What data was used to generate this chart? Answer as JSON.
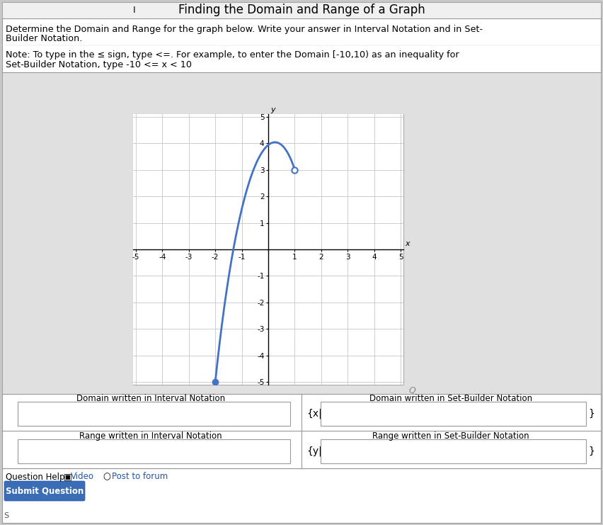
{
  "title": "Finding the Domain and Range of a Graph",
  "instruction_line1": "Determine the Domain and Range for the graph below. Write your answer in Interval Notation and in Set-",
  "instruction_line2": "Builder Notation.",
  "note_line1": "Note: To type in the ≤ sign, type <=. For example, to enter the Domain [-10,10) as an inequality for",
  "note_line2": "Set-Builder Notation, type -10 <= x < 10",
  "bg_outer": "#c8c8c8",
  "bg_page": "#ffffff",
  "bg_graph_area": "#e0e0e0",
  "bg_graph": "#ffffff",
  "grid_color": "#bbbbbb",
  "curve_color": "#4472C4",
  "curve_linewidth": 2.0,
  "filled_dot": [
    -2,
    -5
  ],
  "open_dot": [
    1,
    3
  ],
  "xmin": -5,
  "xmax": 5,
  "ymin": -5,
  "ymax": 5,
  "label_domain_interval": "Domain written in Interval Notation",
  "label_domain_set": "Domain written in Set-Builder Notation",
  "label_range_interval": "Range written in Interval Notation",
  "label_range_set": "Range written in Set-Builder Notation",
  "set_builder_domain_prefix": "{x|",
  "set_builder_range_prefix": "{y|",
  "closing_brace": "}",
  "question_help": "Question Help:",
  "video_icon": "▣",
  "video_text": "Video",
  "post_icon": "○",
  "post_text": "Post to forum",
  "submit_text": "Submit Question",
  "submit_bg": "#3a6db5",
  "submit_fg": "#ffffff",
  "footer_text": "S",
  "title_cursor": "I"
}
